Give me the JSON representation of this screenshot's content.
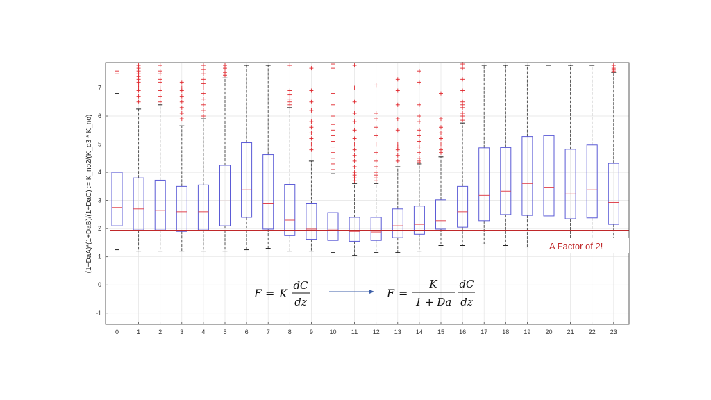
{
  "chart_data": {
    "type": "box",
    "ylabel": "(1+DaA)*(1+DaB)/(1+DaC) := K_no2/(K_o3 * K_no)",
    "xlabel": "",
    "ylim": [
      -1.4,
      7.9
    ],
    "yticks": [
      -1,
      0,
      1,
      2,
      3,
      4,
      5,
      6,
      7
    ],
    "grid": true,
    "categories": [
      "0",
      "1",
      "2",
      "3",
      "4",
      "5",
      "6",
      "7",
      "8",
      "9",
      "10",
      "11",
      "12",
      "13",
      "14",
      "15",
      "16",
      "17",
      "18",
      "19",
      "20",
      "21",
      "22",
      "23"
    ],
    "boxes": [
      {
        "x": "0",
        "lower_whisker": 1.25,
        "q1": 2.1,
        "median": 2.75,
        "q3": 4.0,
        "upper_whisker": 6.8,
        "outliers": [
          7.5,
          7.6
        ]
      },
      {
        "x": "1",
        "lower_whisker": 1.2,
        "q1": 1.95,
        "median": 2.7,
        "q3": 3.8,
        "upper_whisker": 6.25,
        "outliers": [
          6.5,
          6.7,
          6.9,
          7.0,
          7.1,
          7.2,
          7.3,
          7.4,
          7.5,
          7.6,
          7.7,
          7.8
        ]
      },
      {
        "x": "2",
        "lower_whisker": 1.2,
        "q1": 1.95,
        "median": 2.65,
        "q3": 3.72,
        "upper_whisker": 6.4,
        "outliers": [
          6.5,
          6.7,
          6.9,
          7.0,
          7.2,
          7.3,
          7.5,
          7.6,
          7.8
        ]
      },
      {
        "x": "3",
        "lower_whisker": 1.2,
        "q1": 1.9,
        "median": 2.6,
        "q3": 3.5,
        "upper_whisker": 5.65,
        "outliers": [
          5.9,
          6.1,
          6.3,
          6.5,
          6.7,
          6.9,
          7.0,
          7.2
        ]
      },
      {
        "x": "4",
        "lower_whisker": 1.2,
        "q1": 1.95,
        "median": 2.6,
        "q3": 3.55,
        "upper_whisker": 5.9,
        "outliers": [
          6.0,
          6.2,
          6.4,
          6.6,
          6.8,
          7.0,
          7.15,
          7.3,
          7.5,
          7.65,
          7.8
        ]
      },
      {
        "x": "5",
        "lower_whisker": 1.2,
        "q1": 2.1,
        "median": 2.98,
        "q3": 4.25,
        "upper_whisker": 7.35,
        "outliers": [
          7.45,
          7.55,
          7.7,
          7.8
        ]
      },
      {
        "x": "6",
        "lower_whisker": 1.25,
        "q1": 2.4,
        "median": 3.38,
        "q3": 5.05,
        "upper_whisker": 7.8,
        "outliers": []
      },
      {
        "x": "7",
        "lower_whisker": 1.3,
        "q1": 1.98,
        "median": 2.88,
        "q3": 4.63,
        "upper_whisker": 7.8,
        "outliers": []
      },
      {
        "x": "8",
        "lower_whisker": 1.2,
        "q1": 1.75,
        "median": 2.3,
        "q3": 3.57,
        "upper_whisker": 6.3,
        "outliers": [
          6.4,
          6.5,
          6.6,
          6.75,
          6.9,
          7.8
        ]
      },
      {
        "x": "9",
        "lower_whisker": 1.2,
        "q1": 1.62,
        "median": 1.98,
        "q3": 2.88,
        "upper_whisker": 4.4,
        "outliers": [
          4.8,
          5.0,
          5.2,
          5.4,
          5.6,
          5.8,
          6.2,
          6.5,
          6.9,
          7.7
        ]
      },
      {
        "x": "10",
        "lower_whisker": 1.15,
        "q1": 1.58,
        "median": 1.95,
        "q3": 2.57,
        "upper_whisker": 3.95,
        "outliers": [
          4.1,
          4.3,
          4.5,
          4.7,
          4.9,
          5.1,
          5.3,
          5.5,
          5.7,
          6.0,
          6.4,
          6.8,
          7.0,
          7.7,
          7.85
        ]
      },
      {
        "x": "11",
        "lower_whisker": 1.05,
        "q1": 1.55,
        "median": 1.9,
        "q3": 2.4,
        "upper_whisker": 3.6,
        "outliers": [
          3.7,
          3.8,
          3.9,
          4.0,
          4.2,
          4.4,
          4.6,
          4.8,
          5.0,
          5.2,
          5.5,
          5.8,
          6.1,
          6.5,
          7.0,
          7.8
        ]
      },
      {
        "x": "12",
        "lower_whisker": 1.15,
        "q1": 1.58,
        "median": 1.88,
        "q3": 2.4,
        "upper_whisker": 3.6,
        "outliers": [
          3.7,
          3.8,
          3.9,
          4.0,
          4.2,
          4.4,
          4.7,
          5.0,
          5.3,
          5.6,
          5.9,
          6.1,
          7.1
        ]
      },
      {
        "x": "13",
        "lower_whisker": 1.15,
        "q1": 1.68,
        "median": 2.1,
        "q3": 2.7,
        "upper_whisker": 4.2,
        "outliers": [
          4.4,
          4.6,
          4.8,
          4.9,
          5.0,
          5.5,
          5.9,
          6.4,
          6.9,
          7.3
        ]
      },
      {
        "x": "14",
        "lower_whisker": 1.2,
        "q1": 1.8,
        "median": 2.15,
        "q3": 2.8,
        "upper_whisker": 4.3,
        "outliers": [
          4.35,
          4.4,
          4.5,
          4.7,
          4.9,
          5.1,
          5.3,
          5.5,
          5.8,
          6.0,
          6.4,
          7.2,
          7.6
        ]
      },
      {
        "x": "15",
        "lower_whisker": 1.4,
        "q1": 1.98,
        "median": 2.28,
        "q3": 3.02,
        "upper_whisker": 4.55,
        "outliers": [
          4.7,
          4.8,
          5.0,
          5.2,
          5.4,
          5.6,
          5.9,
          6.8
        ]
      },
      {
        "x": "16",
        "lower_whisker": 1.4,
        "q1": 2.05,
        "median": 2.6,
        "q3": 3.5,
        "upper_whisker": 5.75,
        "outliers": [
          5.85,
          6.0,
          6.1,
          6.3,
          6.4,
          6.5,
          6.9,
          7.3,
          7.7,
          7.85
        ]
      },
      {
        "x": "17",
        "lower_whisker": 1.45,
        "q1": 2.28,
        "median": 3.18,
        "q3": 4.87,
        "upper_whisker": 7.8,
        "outliers": []
      },
      {
        "x": "18",
        "lower_whisker": 1.4,
        "q1": 2.5,
        "median": 3.33,
        "q3": 4.88,
        "upper_whisker": 7.8,
        "outliers": []
      },
      {
        "x": "19",
        "lower_whisker": 1.35,
        "q1": 2.47,
        "median": 3.6,
        "q3": 5.27,
        "upper_whisker": 7.8,
        "outliers": []
      },
      {
        "x": "20",
        "lower_whisker": 1.45,
        "q1": 2.45,
        "median": 3.47,
        "q3": 5.3,
        "upper_whisker": 7.8,
        "outliers": []
      },
      {
        "x": "21",
        "lower_whisker": 1.45,
        "q1": 2.35,
        "median": 3.23,
        "q3": 4.82,
        "upper_whisker": 7.8,
        "outliers": []
      },
      {
        "x": "22",
        "lower_whisker": 1.45,
        "q1": 2.38,
        "median": 3.38,
        "q3": 4.97,
        "upper_whisker": 7.8,
        "outliers": []
      },
      {
        "x": "23",
        "lower_whisker": 1.45,
        "q1": 2.15,
        "median": 2.93,
        "q3": 4.32,
        "upper_whisker": 7.55,
        "outliers": [
          7.6,
          7.65,
          7.7,
          7.8
        ]
      }
    ],
    "reference_line": {
      "y": 1.93,
      "color": "#c0282a"
    },
    "annotation": "A Factor of 2!",
    "equation_left": {
      "F": "F",
      "eq": "=",
      "K": "K",
      "num": "dC",
      "den": "dz"
    },
    "equation_right": {
      "F": "F",
      "eq": "=",
      "num_frac": "K",
      "den_frac": "1 + Da",
      "num": "dC",
      "den": "dz"
    },
    "colors": {
      "box": "#5b5bd6",
      "median": "#e0454f",
      "outlier": "#e0262c",
      "whisker": "#444444",
      "reference": "#c0282a",
      "arrow": "#3d5fa8"
    }
  }
}
